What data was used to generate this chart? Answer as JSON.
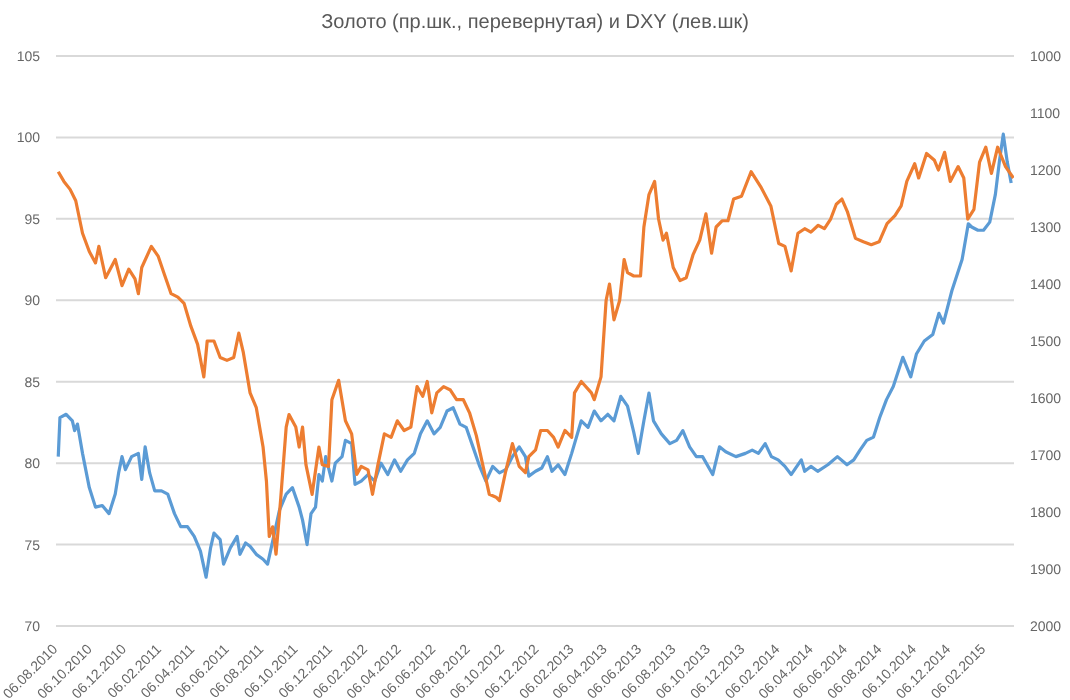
{
  "chart_data": {
    "type": "line",
    "title": "Золото (пр.шк., перевернутая) и DXY (лев.шк)",
    "xlim": [
      "2010-08-02",
      "2015-03-27"
    ],
    "xticks": [
      {
        "value": "2010-08-06",
        "label": "06.08.2010"
      },
      {
        "value": "2010-10-06",
        "label": "06.10.2010"
      },
      {
        "value": "2010-12-06",
        "label": "06.12.2010"
      },
      {
        "value": "2011-02-06",
        "label": "06.02.2011"
      },
      {
        "value": "2011-04-06",
        "label": "06.04.2011"
      },
      {
        "value": "2011-06-06",
        "label": "06.06.2011"
      },
      {
        "value": "2011-08-06",
        "label": "06.08.2011"
      },
      {
        "value": "2011-10-06",
        "label": "06.10.2011"
      },
      {
        "value": "2011-12-06",
        "label": "06.12.2011"
      },
      {
        "value": "2012-02-06",
        "label": "06.02.2012"
      },
      {
        "value": "2012-04-06",
        "label": "06.04.2012"
      },
      {
        "value": "2012-06-06",
        "label": "06.06.2012"
      },
      {
        "value": "2012-08-06",
        "label": "06.08.2012"
      },
      {
        "value": "2012-10-06",
        "label": "06.10.2012"
      },
      {
        "value": "2012-12-06",
        "label": "06.12.2012"
      },
      {
        "value": "2013-02-06",
        "label": "06.02.2013"
      },
      {
        "value": "2013-04-06",
        "label": "06.04.2013"
      },
      {
        "value": "2013-06-06",
        "label": "06.06.2013"
      },
      {
        "value": "2013-08-06",
        "label": "06.08.2013"
      },
      {
        "value": "2013-10-06",
        "label": "06.10.2013"
      },
      {
        "value": "2013-12-06",
        "label": "06.12.2013"
      },
      {
        "value": "2014-02-06",
        "label": "06.02.2014"
      },
      {
        "value": "2014-04-06",
        "label": "06.04.2014"
      },
      {
        "value": "2014-06-06",
        "label": "06.06.2014"
      },
      {
        "value": "2014-08-06",
        "label": "06.08.2014"
      },
      {
        "value": "2014-10-06",
        "label": "06.10.2014"
      },
      {
        "value": "2014-12-06",
        "label": "06.12.2014"
      },
      {
        "value": "2015-02-06",
        "label": "06.02.2015"
      }
    ],
    "ylim": [
      70,
      105
    ],
    "yticks": [
      70,
      75,
      80,
      85,
      90,
      95,
      100,
      105
    ],
    "y2lim": [
      2000,
      1000
    ],
    "y2ticks": [
      1000,
      1100,
      1200,
      1300,
      1400,
      1500,
      1600,
      1700,
      1800,
      1900,
      2000
    ],
    "grid": "y",
    "legend": false,
    "marker": "none",
    "line_style": "solid",
    "series": [
      {
        "color": "#5b9bd5",
        "x": [
          "2010-08-06",
          "2010-08-09",
          "2010-08-20",
          "2010-08-31",
          "2010-09-04",
          "2010-09-09",
          "2010-09-18",
          "2010-09-30",
          "2010-10-11",
          "2010-10-23",
          "2010-11-04",
          "2010-11-15",
          "2010-11-21",
          "2010-11-27",
          "2010-12-03",
          "2010-12-14",
          "2010-12-26",
          "2011-01-01",
          "2011-01-07",
          "2011-01-15",
          "2011-01-24",
          "2011-02-05",
          "2011-02-16",
          "2011-02-28",
          "2011-03-11",
          "2011-03-23",
          "2011-04-04",
          "2011-04-15",
          "2011-04-25",
          "2011-05-03",
          "2011-05-09",
          "2011-05-20",
          "2011-05-26",
          "2011-06-07",
          "2011-06-19",
          "2011-06-24",
          "2011-07-04",
          "2011-07-12",
          "2011-07-23",
          "2011-08-04",
          "2011-08-12",
          "2011-08-21",
          "2011-09-02",
          "2011-09-14",
          "2011-09-25",
          "2011-10-07",
          "2011-10-13",
          "2011-10-21",
          "2011-10-28",
          "2011-11-05",
          "2011-11-11",
          "2011-11-17",
          "2011-11-23",
          "2011-12-04",
          "2011-12-10",
          "2011-12-22",
          "2011-12-28",
          "2012-01-08",
          "2012-01-14",
          "2012-01-25",
          "2012-02-06",
          "2012-02-18",
          "2012-02-29",
          "2012-03-12",
          "2012-03-24",
          "2012-04-04",
          "2012-04-16",
          "2012-04-28",
          "2012-05-09",
          "2012-05-21",
          "2012-06-02",
          "2012-06-13",
          "2012-06-25",
          "2012-07-06",
          "2012-07-18",
          "2012-07-29",
          "2012-08-10",
          "2012-08-22",
          "2012-09-02",
          "2012-09-14",
          "2012-09-26",
          "2012-10-07",
          "2012-10-19",
          "2012-10-31",
          "2012-11-11",
          "2012-11-17",
          "2012-11-29",
          "2012-12-10",
          "2012-12-20",
          "2012-12-28",
          "2013-01-08",
          "2013-01-20",
          "2013-02-01",
          "2013-02-18",
          "2013-03-02",
          "2013-03-13",
          "2013-03-25",
          "2013-04-06",
          "2013-04-17",
          "2013-04-29",
          "2013-05-11",
          "2013-05-22",
          "2013-05-30",
          "2013-06-09",
          "2013-06-18",
          "2013-06-26",
          "2013-07-10",
          "2013-07-25",
          "2013-08-06",
          "2013-08-17",
          "2013-08-29",
          "2013-09-10",
          "2013-09-21",
          "2013-10-09",
          "2013-10-21",
          "2013-11-01",
          "2013-11-19",
          "2013-12-06",
          "2013-12-18",
          "2013-12-29",
          "2014-01-10",
          "2014-01-21",
          "2014-02-02",
          "2014-02-14",
          "2014-02-25",
          "2014-03-15",
          "2014-03-21",
          "2014-04-01",
          "2014-04-13",
          "2014-05-01",
          "2014-05-18",
          "2014-06-04",
          "2014-06-16",
          "2014-06-27",
          "2014-07-09",
          "2014-07-21",
          "2014-08-01",
          "2014-08-13",
          "2014-08-25",
          "2014-09-11",
          "2014-09-25",
          "2014-10-05",
          "2014-10-19",
          "2014-11-03",
          "2014-11-14",
          "2014-11-22",
          "2014-12-07",
          "2014-12-25",
          "2015-01-05",
          "2015-01-11",
          "2015-01-22",
          "2015-02-01",
          "2015-02-12",
          "2015-02-22",
          "2015-03-01",
          "2015-03-08",
          "2015-03-15",
          "2015-03-22"
        ],
        "values": [
          80.4,
          82.8,
          83.0,
          82.6,
          82.0,
          82.4,
          80.6,
          78.5,
          77.3,
          77.4,
          76.9,
          78.1,
          79.4,
          80.4,
          79.6,
          80.4,
          80.6,
          79.0,
          81.0,
          79.4,
          78.3,
          78.3,
          78.1,
          76.9,
          76.1,
          76.1,
          75.5,
          74.6,
          73.0,
          74.8,
          75.7,
          75.3,
          73.8,
          74.8,
          75.5,
          74.4,
          75.1,
          74.9,
          74.4,
          74.1,
          73.8,
          75.2,
          77.1,
          78.1,
          78.5,
          77.3,
          76.5,
          75.0,
          76.9,
          77.3,
          79.3,
          78.9,
          80.4,
          78.9,
          80.0,
          80.4,
          81.4,
          81.2,
          78.7,
          78.9,
          79.3,
          78.9,
          80.0,
          79.3,
          80.2,
          79.5,
          80.2,
          80.6,
          81.8,
          82.6,
          81.8,
          82.2,
          83.2,
          83.4,
          82.4,
          82.2,
          81.0,
          79.8,
          78.9,
          79.8,
          79.4,
          79.6,
          80.4,
          81.0,
          80.4,
          79.2,
          79.5,
          79.7,
          80.4,
          79.5,
          79.9,
          79.3,
          80.6,
          82.6,
          82.2,
          83.2,
          82.6,
          83.0,
          82.6,
          84.1,
          83.5,
          81.9,
          80.6,
          82.6,
          84.3,
          82.6,
          81.8,
          81.2,
          81.4,
          82.0,
          81.0,
          80.4,
          80.4,
          79.3,
          81.0,
          80.7,
          80.4,
          80.6,
          80.8,
          80.6,
          81.2,
          80.4,
          80.2,
          79.8,
          79.3,
          80.2,
          79.5,
          79.8,
          79.5,
          79.9,
          80.4,
          79.9,
          80.2,
          80.8,
          81.4,
          81.6,
          82.8,
          83.9,
          84.7,
          86.5,
          85.3,
          86.7,
          87.5,
          87.9,
          89.2,
          88.6,
          90.6,
          92.5,
          94.7,
          94.5,
          94.3,
          94.3,
          94.8,
          96.5,
          98.5,
          100.2,
          98.5,
          97.2
        ]
      },
      {
        "color": "#ed7d31",
        "axis": "y2",
        "x": [
          "2010-08-06",
          "2010-08-16",
          "2010-08-27",
          "2010-09-06",
          "2010-09-18",
          "2010-09-30",
          "2010-10-11",
          "2010-10-17",
          "2010-10-29",
          "2010-11-15",
          "2010-11-27",
          "2010-12-09",
          "2010-12-20",
          "2010-12-26",
          "2011-01-01",
          "2011-01-18",
          "2011-01-30",
          "2011-02-10",
          "2011-02-22",
          "2011-03-06",
          "2011-03-17",
          "2011-03-29",
          "2011-04-10",
          "2011-04-21",
          "2011-04-27",
          "2011-05-09",
          "2011-05-20",
          "2011-06-01",
          "2011-06-13",
          "2011-06-22",
          "2011-06-30",
          "2011-07-12",
          "2011-07-23",
          "2011-08-04",
          "2011-08-10",
          "2011-08-15",
          "2011-08-21",
          "2011-08-27",
          "2011-09-04",
          "2011-09-14",
          "2011-09-19",
          "2011-10-01",
          "2011-10-07",
          "2011-10-13",
          "2011-10-19",
          "2011-10-30",
          "2011-11-11",
          "2011-11-17",
          "2011-11-28",
          "2011-12-04",
          "2011-12-16",
          "2011-12-28",
          "2012-01-08",
          "2012-01-17",
          "2012-01-25",
          "2012-02-06",
          "2012-02-14",
          "2012-02-23",
          "2012-03-06",
          "2012-03-18",
          "2012-03-29",
          "2012-04-10",
          "2012-04-22",
          "2012-05-03",
          "2012-05-13",
          "2012-05-21",
          "2012-05-29",
          "2012-06-07",
          "2012-06-19",
          "2012-07-01",
          "2012-07-12",
          "2012-07-24",
          "2012-08-04",
          "2012-08-16",
          "2012-08-28",
          "2012-09-08",
          "2012-09-20",
          "2012-09-26",
          "2012-10-07",
          "2012-10-19",
          "2012-10-31",
          "2012-11-11",
          "2012-11-17",
          "2012-11-29",
          "2012-12-08",
          "2012-12-20",
          "2012-12-31",
          "2013-01-08",
          "2013-01-20",
          "2013-02-01",
          "2013-02-06",
          "2013-02-18",
          "2013-03-08",
          "2013-03-13",
          "2013-03-25",
          "2013-04-03",
          "2013-04-09",
          "2013-04-17",
          "2013-04-27",
          "2013-05-05",
          "2013-05-11",
          "2013-05-22",
          "2013-06-03",
          "2013-06-09",
          "2013-06-18",
          "2013-06-28",
          "2013-07-05",
          "2013-07-13",
          "2013-07-19",
          "2013-07-31",
          "2013-08-12",
          "2013-08-23",
          "2013-09-04",
          "2013-09-16",
          "2013-09-27",
          "2013-10-07",
          "2013-10-15",
          "2013-10-26",
          "2013-11-05",
          "2013-11-15",
          "2013-11-29",
          "2013-12-16",
          "2014-01-03",
          "2014-01-20",
          "2014-02-03",
          "2014-02-14",
          "2014-02-25",
          "2014-03-09",
          "2014-03-21",
          "2014-04-01",
          "2014-04-14",
          "2014-04-25",
          "2014-05-06",
          "2014-05-16",
          "2014-05-26",
          "2014-06-05",
          "2014-06-19",
          "2014-07-03",
          "2014-07-17",
          "2014-07-31",
          "2014-08-14",
          "2014-08-28",
          "2014-09-08",
          "2014-09-18",
          "2014-10-02",
          "2014-10-09",
          "2014-10-23",
          "2014-11-06",
          "2014-11-13",
          "2014-11-24",
          "2014-12-04",
          "2014-12-18",
          "2014-12-28",
          "2015-01-04",
          "2015-01-15",
          "2015-01-25",
          "2015-02-05",
          "2015-02-15",
          "2015-02-26",
          "2015-03-12",
          "2015-03-26"
        ],
        "values": [
          1203,
          1220,
          1234,
          1254,
          1311,
          1343,
          1363,
          1334,
          1389,
          1357,
          1403,
          1374,
          1391,
          1417,
          1371,
          1334,
          1351,
          1383,
          1417,
          1423,
          1434,
          1474,
          1506,
          1563,
          1500,
          1500,
          1529,
          1534,
          1529,
          1486,
          1520,
          1591,
          1617,
          1686,
          1746,
          1843,
          1826,
          1874,
          1780,
          1651,
          1629,
          1651,
          1686,
          1651,
          1717,
          1769,
          1686,
          1717,
          1720,
          1603,
          1569,
          1640,
          1663,
          1734,
          1720,
          1726,
          1769,
          1720,
          1663,
          1669,
          1640,
          1657,
          1651,
          1580,
          1597,
          1571,
          1626,
          1591,
          1580,
          1586,
          1603,
          1603,
          1626,
          1666,
          1720,
          1769,
          1774,
          1780,
          1729,
          1680,
          1720,
          1731,
          1703,
          1691,
          1657,
          1657,
          1669,
          1686,
          1657,
          1669,
          1591,
          1571,
          1591,
          1603,
          1563,
          1429,
          1400,
          1463,
          1429,
          1357,
          1380,
          1386,
          1386,
          1300,
          1243,
          1220,
          1286,
          1323,
          1311,
          1371,
          1394,
          1389,
          1349,
          1323,
          1277,
          1346,
          1300,
          1289,
          1289,
          1251,
          1246,
          1203,
          1231,
          1263,
          1329,
          1334,
          1377,
          1311,
          1303,
          1309,
          1297,
          1303,
          1286,
          1260,
          1251,
          1274,
          1320,
          1326,
          1331,
          1326,
          1294,
          1280,
          1263,
          1220,
          1189,
          1214,
          1171,
          1183,
          1200,
          1169,
          1220,
          1194,
          1214,
          1286,
          1269,
          1186,
          1160,
          1206,
          1160,
          1194,
          1214
        ]
      }
    ]
  }
}
